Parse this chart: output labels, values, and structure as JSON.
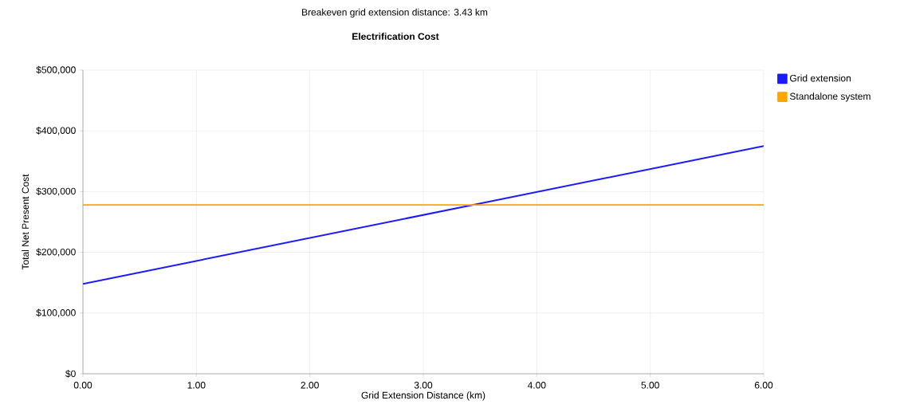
{
  "chart_data": {
    "type": "line",
    "title": "Electrification Cost",
    "subtitle": "Breakeven grid extension distance: 3.43 km",
    "xlabel": "Grid Extension Distance (km)",
    "ylabel": "Total Net Present Cost",
    "x": [
      0,
      6
    ],
    "series": [
      {
        "name": "Grid extension",
        "color": "#1a1aff",
        "values": [
          148000,
          375000
        ]
      },
      {
        "name": "Standalone system",
        "color": "#ffa500",
        "values": [
          278000,
          278000
        ]
      }
    ],
    "xlim": [
      0,
      6
    ],
    "xticks": [
      {
        "value": 0,
        "label": "0.00"
      },
      {
        "value": 1,
        "label": "1.00"
      },
      {
        "value": 2,
        "label": "2.00"
      },
      {
        "value": 3,
        "label": "3.00"
      },
      {
        "value": 4,
        "label": "4.00"
      },
      {
        "value": 5,
        "label": "5.00"
      },
      {
        "value": 6,
        "label": "6.00"
      }
    ],
    "ylim": [
      0,
      500000
    ],
    "yticks": [
      {
        "value": 0,
        "label": "$0"
      },
      {
        "value": 100000,
        "label": "$100,000"
      },
      {
        "value": 200000,
        "label": "$200,000"
      },
      {
        "value": 300000,
        "label": "$300,000"
      },
      {
        "value": 400000,
        "label": "$400,000"
      },
      {
        "value": 500000,
        "label": "$500,000"
      }
    ],
    "grid": true,
    "legend": "top right",
    "marker": "none",
    "line_style": "solid"
  }
}
